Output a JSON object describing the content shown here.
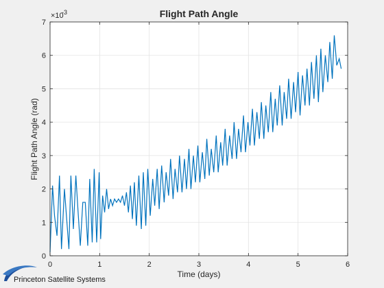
{
  "chart_data": {
    "type": "line",
    "title": "Flight Path Angle",
    "xlabel": "Time (days)",
    "ylabel": "Flight Path Angle (rad)",
    "exponent_label": "×10",
    "exponent_power": "-3",
    "xlim": [
      0,
      6
    ],
    "ylim": [
      0,
      0.007
    ],
    "x_ticks": [
      0,
      1,
      2,
      3,
      4,
      5,
      6
    ],
    "y_ticks": [
      0,
      1,
      2,
      3,
      4,
      5,
      6,
      7
    ],
    "y_tick_scale": 0.001,
    "grid": true,
    "series": [
      {
        "color": "#0072bd",
        "x": [
          0,
          0.05,
          0.09,
          0.14,
          0.19,
          0.23,
          0.29,
          0.33,
          0.38,
          0.42,
          0.47,
          0.52,
          0.57,
          0.61,
          0.66,
          0.71,
          0.76,
          0.8,
          0.85,
          0.89,
          0.94,
          0.99,
          1.02,
          1.06,
          1.1,
          1.14,
          1.18,
          1.22,
          1.26,
          1.3,
          1.34,
          1.38,
          1.42,
          1.46,
          1.5,
          1.54,
          1.58,
          1.62,
          1.66,
          1.7,
          1.74,
          1.79,
          1.84,
          1.88,
          1.93,
          1.97,
          2.02,
          2.07,
          2.11,
          2.16,
          2.2,
          2.25,
          2.3,
          2.34,
          2.39,
          2.43,
          2.48,
          2.52,
          2.57,
          2.61,
          2.66,
          2.71,
          2.75,
          2.8,
          2.84,
          2.89,
          2.93,
          2.98,
          3.02,
          3.07,
          3.12,
          3.16,
          3.21,
          3.25,
          3.3,
          3.35,
          3.39,
          3.44,
          3.48,
          3.53,
          3.57,
          3.62,
          3.67,
          3.71,
          3.76,
          3.8,
          3.85,
          3.9,
          3.94,
          3.99,
          4.03,
          4.08,
          4.12,
          4.17,
          4.22,
          4.26,
          4.31,
          4.35,
          4.4,
          4.45,
          4.49,
          4.54,
          4.58,
          4.63,
          4.68,
          4.72,
          4.77,
          4.81,
          4.86,
          4.91,
          4.95,
          5.0,
          5.04,
          5.09,
          5.14,
          5.18,
          5.23,
          5.27,
          5.32,
          5.37,
          5.41,
          5.46,
          5.5,
          5.55,
          5.6,
          5.64,
          5.69,
          5.73,
          5.78,
          5.83,
          5.87
        ],
        "y": [
          0.0001,
          0.0021,
          0.0012,
          0.0006,
          0.0024,
          0.0002,
          0.002,
          0.0012,
          0.0002,
          0.0024,
          0.0008,
          0.0024,
          0.0012,
          0.0003,
          0.0016,
          0.0016,
          0.0003,
          0.0023,
          0.0004,
          0.0026,
          0.0004,
          0.0025,
          0.0005,
          0.0018,
          0.0013,
          0.002,
          0.0014,
          0.0017,
          0.0015,
          0.0017,
          0.0016,
          0.0017,
          0.0016,
          0.0018,
          0.0015,
          0.0019,
          0.0013,
          0.0021,
          0.0011,
          0.0022,
          0.0009,
          0.0024,
          0.0008,
          0.0025,
          0.0009,
          0.0026,
          0.0012,
          0.0023,
          0.0015,
          0.0026,
          0.0014,
          0.0027,
          0.0016,
          0.0025,
          0.0018,
          0.0029,
          0.0017,
          0.0026,
          0.0019,
          0.003,
          0.0019,
          0.0029,
          0.002,
          0.0032,
          0.002,
          0.003,
          0.0022,
          0.0033,
          0.0022,
          0.0031,
          0.0023,
          0.0035,
          0.0024,
          0.0032,
          0.0025,
          0.0036,
          0.0025,
          0.0034,
          0.0027,
          0.0038,
          0.0027,
          0.0036,
          0.0029,
          0.004,
          0.0029,
          0.0038,
          0.0031,
          0.0042,
          0.0031,
          0.004,
          0.0033,
          0.0044,
          0.0033,
          0.0043,
          0.0035,
          0.0046,
          0.0035,
          0.0045,
          0.0037,
          0.0049,
          0.0037,
          0.0047,
          0.0039,
          0.0051,
          0.0039,
          0.0049,
          0.0041,
          0.0053,
          0.0041,
          0.0052,
          0.0043,
          0.0055,
          0.0042,
          0.0054,
          0.0045,
          0.0056,
          0.0045,
          0.0058,
          0.0047,
          0.006,
          0.0046,
          0.0062,
          0.0049,
          0.006,
          0.0052,
          0.0064,
          0.0053,
          0.0066,
          0.0057,
          0.0059,
          0.0056
        ]
      }
    ]
  },
  "branding": {
    "company": "Princeton Satellite Systems",
    "logo_icon": "psslogo-swoosh-icon"
  }
}
